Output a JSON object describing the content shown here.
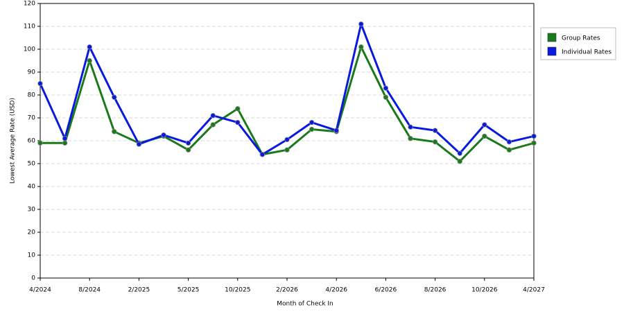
{
  "chart_data": {
    "type": "line",
    "x_label": "Month of Check In",
    "y_label": "Lowest Average Rate (USD)",
    "categories": [
      "4/2024",
      null,
      "8/2024",
      null,
      "2/2025",
      null,
      "5/2025",
      null,
      "10/2025",
      null,
      "2/2026",
      null,
      "4/2026",
      null,
      "6/2026",
      null,
      "8/2026",
      null,
      "10/2026",
      null,
      "4/2027"
    ],
    "series": [
      {
        "name": "Group Rates",
        "color": "#1a7a1a",
        "values": [
          59,
          59,
          95,
          64,
          59,
          62,
          56,
          67,
          74,
          54,
          56,
          65,
          64,
          101,
          79,
          61,
          59.5,
          51,
          62,
          56,
          59
        ]
      },
      {
        "name": "Individual Rates",
        "color": "#0a1adc",
        "values": [
          85,
          61,
          101,
          79,
          58.5,
          62.5,
          59,
          71,
          68,
          54,
          60.5,
          68,
          64.5,
          111,
          83,
          66,
          64.5,
          54.5,
          67,
          59.5,
          62
        ]
      }
    ],
    "ylim": [
      0,
      120
    ],
    "yticks": [
      0,
      10,
      20,
      30,
      40,
      50,
      60,
      70,
      80,
      90,
      100,
      110,
      120
    ],
    "grid": true,
    "legend": "right"
  }
}
